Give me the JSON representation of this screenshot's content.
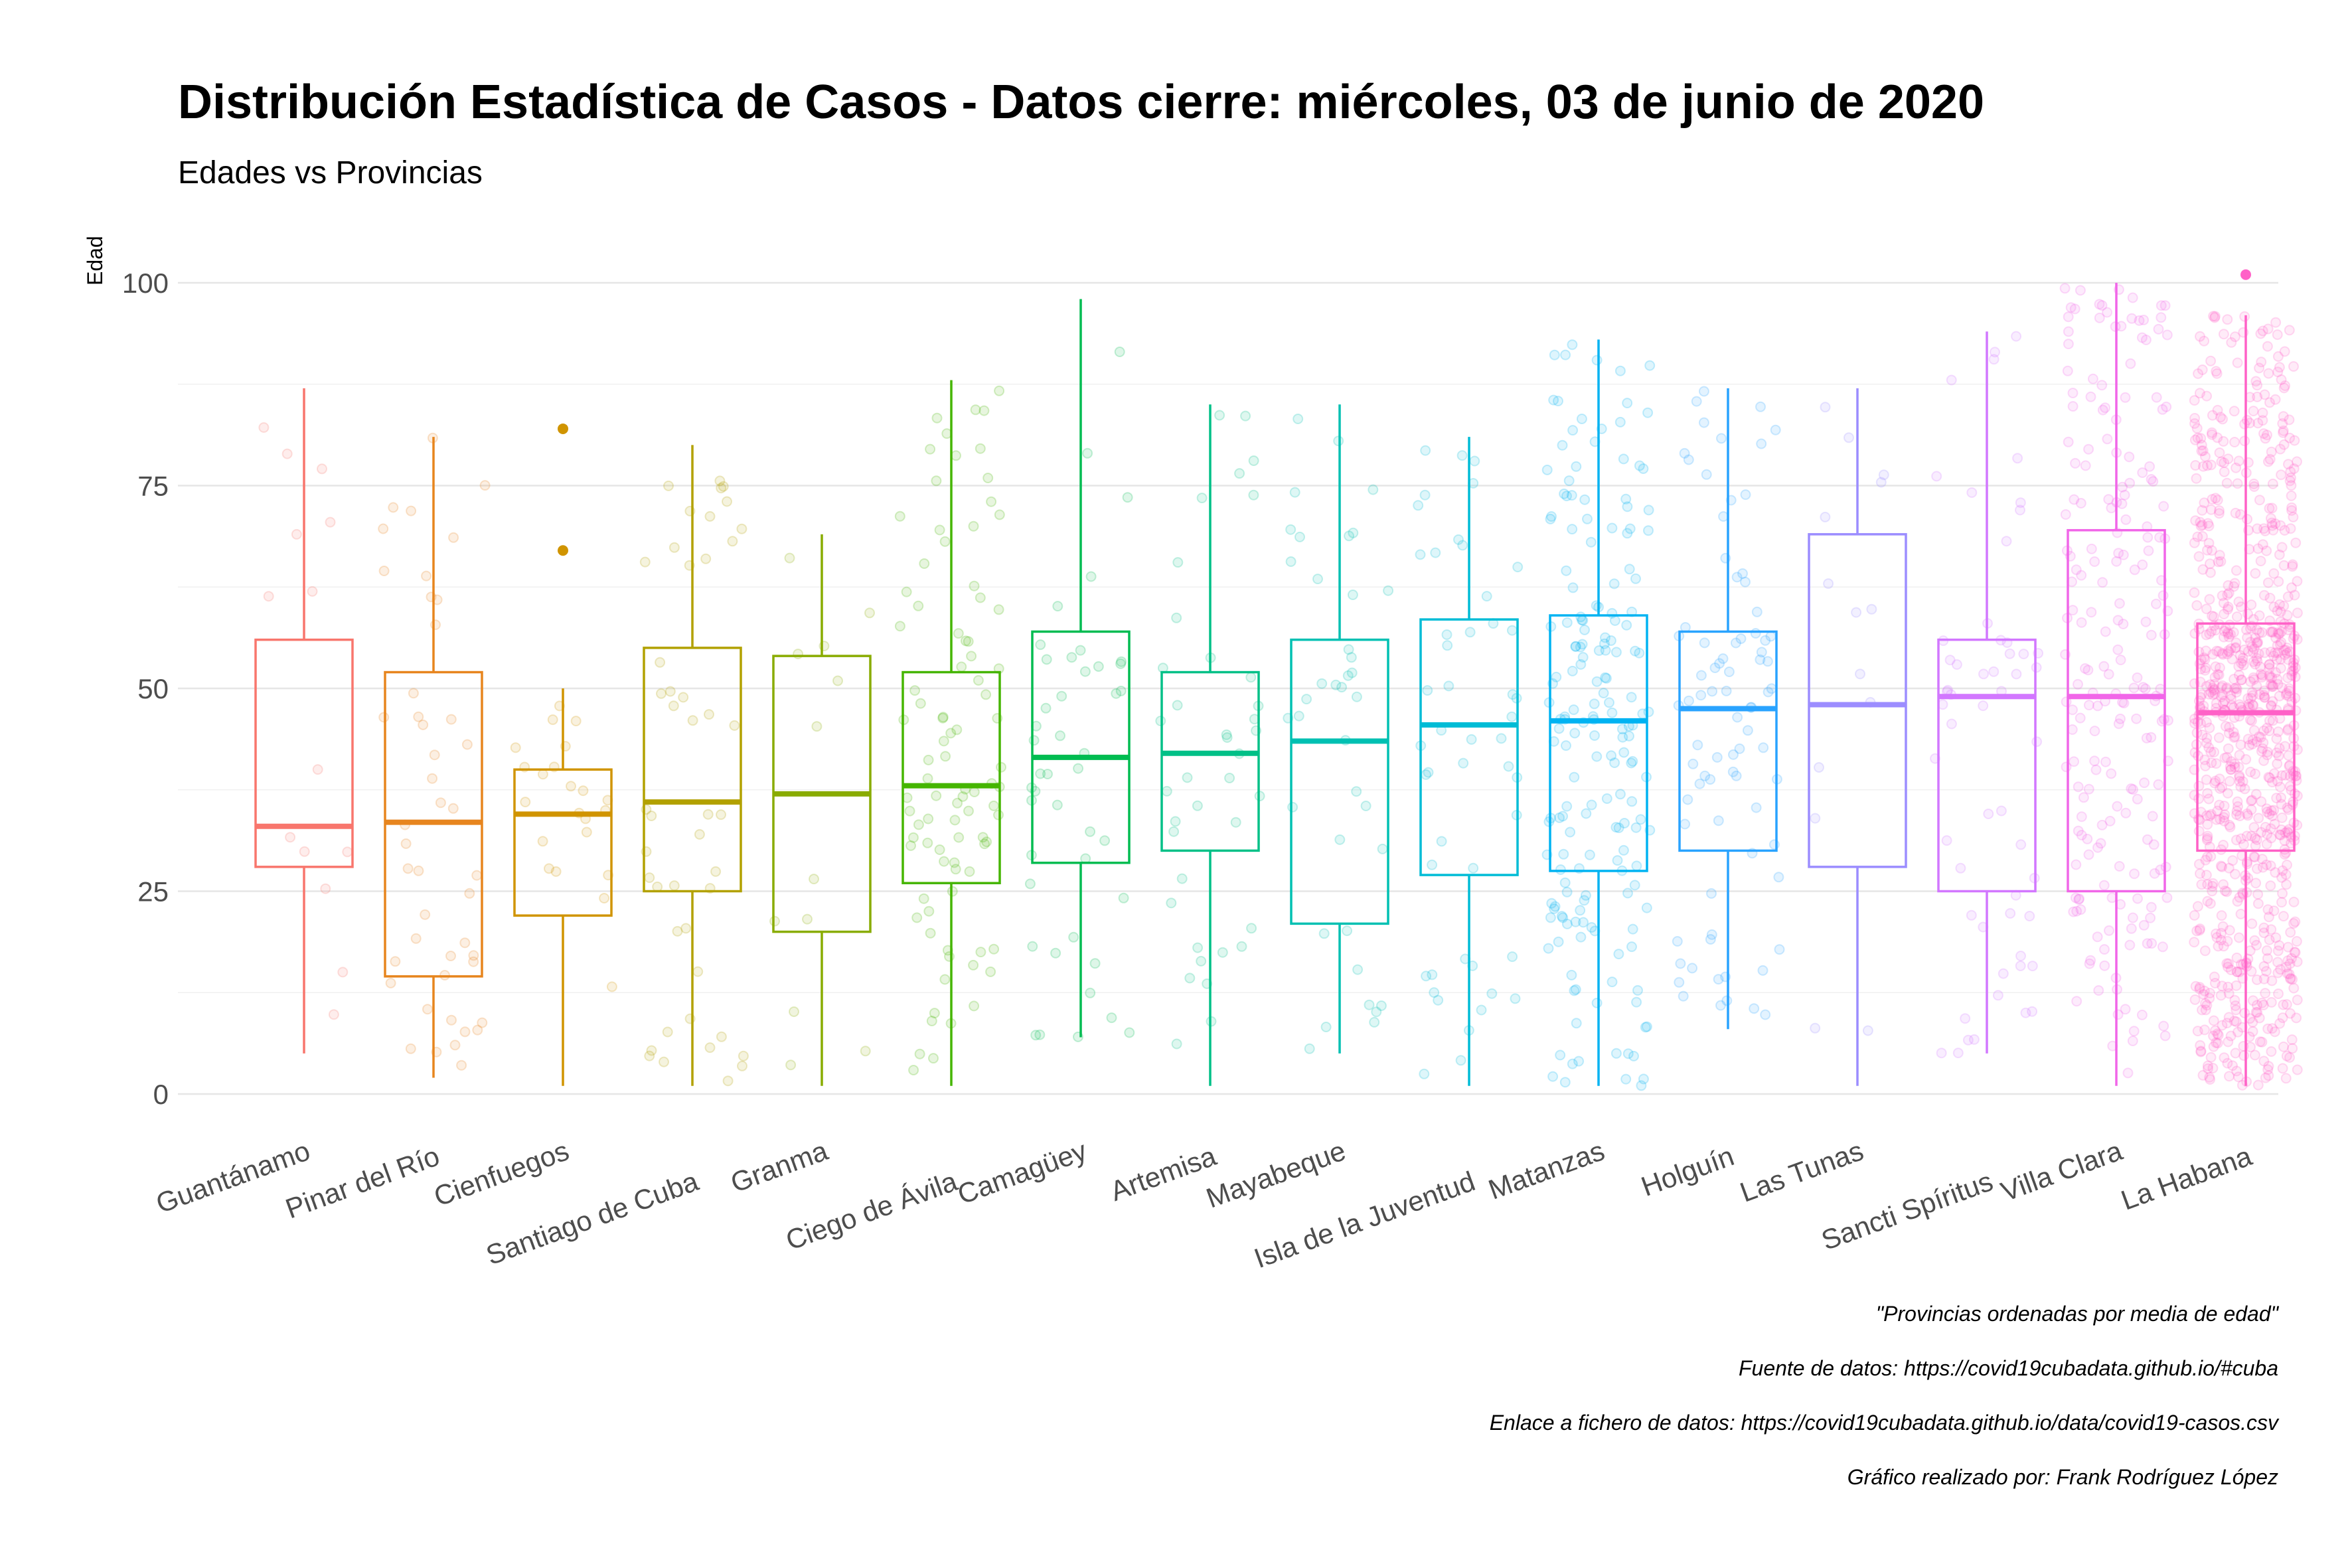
{
  "chart_data": {
    "type": "boxplot",
    "title": "Distribución Estadística de Casos - Datos cierre: miércoles, 03 de junio de 2020",
    "subtitle": "Edades vs Provincias",
    "xlabel": "",
    "ylabel": "Edad",
    "ylim": [
      0,
      100
    ],
    "yticks": [
      "0",
      "25",
      "50",
      "75",
      "100"
    ],
    "grid": true,
    "legend": "none",
    "categories": [
      "Guantánamo",
      "Pinar del Río",
      "Cienfuegos",
      "Santiago de Cuba",
      "Granma",
      "Ciego de Ávila",
      "Camagüey",
      "Artemisa",
      "Mayabeque",
      "Isla de la Juventud",
      "Matanzas",
      "Holguín",
      "Las Tunas",
      "Sancti Spíritus",
      "Villa Clara",
      "La Habana"
    ],
    "colors": [
      "#F8766D",
      "#E7851E",
      "#D09400",
      "#B2A100",
      "#89AC00",
      "#45B500",
      "#00BC51",
      "#00C087",
      "#00C0B2",
      "#00BCD6",
      "#00B3F2",
      "#29A3FF",
      "#9C8DFF",
      "#D277FF",
      "#F166E8",
      "#FF61C7"
    ],
    "boxes": [
      {
        "name": "Guantánamo",
        "whisker_low": 5,
        "q1": 28,
        "median": 33,
        "q3": 56,
        "whisker_high": 87,
        "outliers": [],
        "n_points": 14
      },
      {
        "name": "Pinar del Río",
        "whisker_low": 2,
        "q1": 14.5,
        "median": 33.5,
        "q3": 52,
        "whisker_high": 81,
        "outliers": [],
        "n_points": 45
      },
      {
        "name": "Cienfuegos",
        "whisker_low": 1,
        "q1": 22,
        "median": 34.5,
        "q3": 40,
        "whisker_high": 50,
        "outliers": [
          67,
          82
        ],
        "n_points": 22
      },
      {
        "name": "Santiago de Cuba",
        "whisker_low": 1,
        "q1": 25,
        "median": 36,
        "q3": 55,
        "whisker_high": 80,
        "outliers": [],
        "n_points": 45
      },
      {
        "name": "Granma",
        "whisker_low": 1,
        "q1": 20,
        "median": 37,
        "q3": 54,
        "whisker_high": 69,
        "outliers": [],
        "n_points": 12
      },
      {
        "name": "Ciego de Ávila",
        "whisker_low": 1,
        "q1": 26,
        "median": 38,
        "q3": 52,
        "whisker_high": 88,
        "outliers": [],
        "n_points": 90
      },
      {
        "name": "Camagüey",
        "whisker_low": 7,
        "q1": 28.5,
        "median": 41.5,
        "q3": 57,
        "whisker_high": 98,
        "outliers": [],
        "n_points": 44
      },
      {
        "name": "Artemisa",
        "whisker_low": 1,
        "q1": 30,
        "median": 42,
        "q3": 52,
        "whisker_high": 85,
        "outliers": [],
        "n_points": 38
      },
      {
        "name": "Mayabeque",
        "whisker_low": 5,
        "q1": 21,
        "median": 43.5,
        "q3": 56,
        "whisker_high": 85,
        "outliers": [],
        "n_points": 38
      },
      {
        "name": "Isla de la Juventud",
        "whisker_low": 1,
        "q1": 27,
        "median": 45.5,
        "q3": 58.5,
        "whisker_high": 81,
        "outliers": [],
        "n_points": 48
      },
      {
        "name": "Matanzas",
        "whisker_low": 1,
        "q1": 27.5,
        "median": 46,
        "q3": 59,
        "whisker_high": 93,
        "outliers": [],
        "n_points": 180
      },
      {
        "name": "Holguín",
        "whisker_low": 8,
        "q1": 30,
        "median": 47.5,
        "q3": 57,
        "whisker_high": 87,
        "outliers": [],
        "n_points": 80
      },
      {
        "name": "Las Tunas",
        "whisker_low": 1,
        "q1": 28,
        "median": 48,
        "q3": 69,
        "whisker_high": 87,
        "outliers": [],
        "n_points": 14
      },
      {
        "name": "Sancti Spíritus",
        "whisker_low": 5,
        "q1": 25,
        "median": 49,
        "q3": 56,
        "whisker_high": 94,
        "outliers": [],
        "n_points": 55
      },
      {
        "name": "Villa Clara",
        "whisker_low": 1,
        "q1": 25,
        "median": 49,
        "q3": 69.5,
        "whisker_high": 100,
        "outliers": [],
        "n_points": 205
      },
      {
        "name": "La Habana",
        "whisker_low": 1,
        "q1": 30,
        "median": 47,
        "q3": 58,
        "whisker_high": 96,
        "outliers": [
          101
        ],
        "n_points": 880
      }
    ],
    "captions": [
      "\"Provincias ordenadas por media de edad\"",
      "Fuente de datos: https://covid19cubadata.github.io/#cuba",
      "Enlace a fichero de datos: https://covid19cubadata.github.io/data/covid19-casos.csv",
      "Gráfico realizado por: Frank Rodríguez López"
    ]
  }
}
